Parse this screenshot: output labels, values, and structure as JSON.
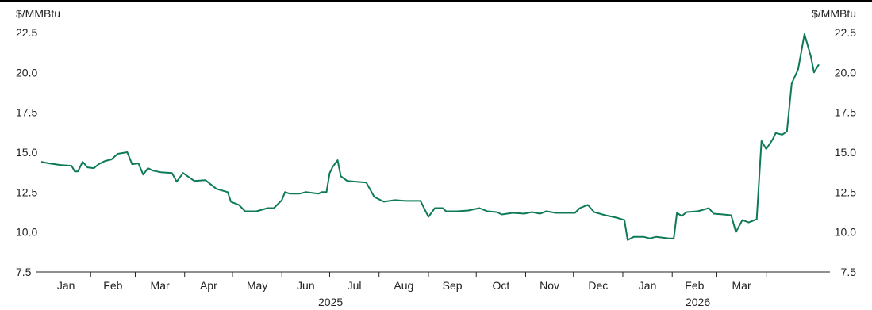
{
  "chart_data": {
    "type": "line",
    "title": "",
    "ylabel_left": "$/MMBtu",
    "ylabel_right": "$/MMBtu",
    "ylim": [
      7.5,
      22.5
    ],
    "yticks": [
      "7.5",
      "10.0",
      "12.5",
      "15.0",
      "17.5",
      "20.0",
      "22.5"
    ],
    "month_labels": [
      "Jan",
      "Feb",
      "Mar",
      "Apr",
      "May",
      "Jun",
      "Jul",
      "Aug",
      "Sep",
      "Oct",
      "Nov",
      "Dec",
      "Jan",
      "Feb",
      "Mar"
    ],
    "year_labels": [
      "2025",
      "2026"
    ],
    "line_color": "#0e7a5a",
    "grid": false,
    "series": [
      {
        "values": [
          [
            "2025-01-01",
            14.4
          ],
          [
            "2025-01-06",
            14.3
          ],
          [
            "2025-01-13",
            14.2
          ],
          [
            "2025-01-20",
            14.15
          ],
          [
            "2025-01-22",
            13.8
          ],
          [
            "2025-01-24",
            13.8
          ],
          [
            "2025-01-27",
            14.4
          ],
          [
            "2025-01-30",
            14.05
          ],
          [
            "2025-02-03",
            14.0
          ],
          [
            "2025-02-06",
            14.25
          ],
          [
            "2025-02-10",
            14.45
          ],
          [
            "2025-02-14",
            14.55
          ],
          [
            "2025-02-18",
            14.9
          ],
          [
            "2025-02-24",
            15.0
          ],
          [
            "2025-02-27",
            14.25
          ],
          [
            "2025-03-03",
            14.3
          ],
          [
            "2025-03-06",
            13.6
          ],
          [
            "2025-03-09",
            14.0
          ],
          [
            "2025-03-12",
            13.85
          ],
          [
            "2025-03-17",
            13.75
          ],
          [
            "2025-03-24",
            13.7
          ],
          [
            "2025-03-27",
            13.15
          ],
          [
            "2025-03-31",
            13.7
          ],
          [
            "2025-04-07",
            13.2
          ],
          [
            "2025-04-14",
            13.25
          ],
          [
            "2025-04-21",
            12.7
          ],
          [
            "2025-04-28",
            12.5
          ],
          [
            "2025-04-30",
            11.9
          ],
          [
            "2025-05-05",
            11.7
          ],
          [
            "2025-05-09",
            11.3
          ],
          [
            "2025-05-16",
            11.3
          ],
          [
            "2025-05-23",
            11.5
          ],
          [
            "2025-05-27",
            11.5
          ],
          [
            "2025-06-01",
            12.0
          ],
          [
            "2025-06-03",
            12.5
          ],
          [
            "2025-06-06",
            12.4
          ],
          [
            "2025-06-12",
            12.4
          ],
          [
            "2025-06-16",
            12.5
          ],
          [
            "2025-06-24",
            12.4
          ],
          [
            "2025-06-26",
            12.5
          ],
          [
            "2025-06-29",
            12.5
          ],
          [
            "2025-07-01",
            13.7
          ],
          [
            "2025-07-03",
            14.1
          ],
          [
            "2025-07-06",
            14.5
          ],
          [
            "2025-07-08",
            13.5
          ],
          [
            "2025-07-12",
            13.2
          ],
          [
            "2025-07-18",
            13.15
          ],
          [
            "2025-07-24",
            13.1
          ],
          [
            "2025-07-29",
            12.2
          ],
          [
            "2025-08-04",
            11.9
          ],
          [
            "2025-08-11",
            12.0
          ],
          [
            "2025-08-18",
            11.95
          ],
          [
            "2025-08-27",
            11.95
          ],
          [
            "2025-09-01",
            10.95
          ],
          [
            "2025-09-05",
            11.5
          ],
          [
            "2025-09-10",
            11.5
          ],
          [
            "2025-09-12",
            11.3
          ],
          [
            "2025-09-19",
            11.3
          ],
          [
            "2025-09-26",
            11.35
          ],
          [
            "2025-10-03",
            11.5
          ],
          [
            "2025-10-08",
            11.3
          ],
          [
            "2025-10-14",
            11.25
          ],
          [
            "2025-10-17",
            11.1
          ],
          [
            "2025-10-24",
            11.2
          ],
          [
            "2025-10-31",
            11.15
          ],
          [
            "2025-11-05",
            11.25
          ],
          [
            "2025-11-10",
            11.15
          ],
          [
            "2025-11-14",
            11.3
          ],
          [
            "2025-11-20",
            11.2
          ],
          [
            "2025-11-25",
            11.2
          ],
          [
            "2025-12-02",
            11.2
          ],
          [
            "2025-12-05",
            11.5
          ],
          [
            "2025-12-10",
            11.7
          ],
          [
            "2025-12-14",
            11.25
          ],
          [
            "2025-12-21",
            11.05
          ],
          [
            "2025-12-28",
            10.9
          ],
          [
            "2026-01-02",
            10.75
          ],
          [
            "2026-01-04",
            9.5
          ],
          [
            "2026-01-08",
            9.7
          ],
          [
            "2026-01-14",
            9.7
          ],
          [
            "2026-01-18",
            9.6
          ],
          [
            "2026-01-22",
            9.7
          ],
          [
            "2026-01-30",
            9.6
          ],
          [
            "2026-02-02",
            9.6
          ],
          [
            "2026-02-04",
            11.2
          ],
          [
            "2026-02-07",
            11.0
          ],
          [
            "2026-02-10",
            11.25
          ],
          [
            "2026-02-17",
            11.3
          ],
          [
            "2026-02-24",
            11.5
          ],
          [
            "2026-02-27",
            11.15
          ],
          [
            "2026-03-05",
            11.1
          ],
          [
            "2026-03-10",
            11.05
          ],
          [
            "2026-03-13",
            10.0
          ],
          [
            "2026-03-17",
            10.75
          ],
          [
            "2026-03-21",
            10.6
          ],
          [
            "2026-03-26",
            10.8
          ],
          [
            "2026-03-29",
            15.7
          ],
          [
            "2026-04-01",
            15.2
          ],
          [
            "2026-04-05",
            15.8
          ],
          [
            "2026-04-07",
            16.2
          ],
          [
            "2026-04-11",
            16.1
          ],
          [
            "2026-04-14",
            16.3
          ],
          [
            "2026-04-17",
            19.3
          ],
          [
            "2026-04-21",
            20.2
          ],
          [
            "2026-04-25",
            22.4
          ],
          [
            "2026-04-29",
            21.0
          ],
          [
            "2026-05-01",
            20.0
          ],
          [
            "2026-05-04",
            20.5
          ]
        ]
      }
    ]
  }
}
